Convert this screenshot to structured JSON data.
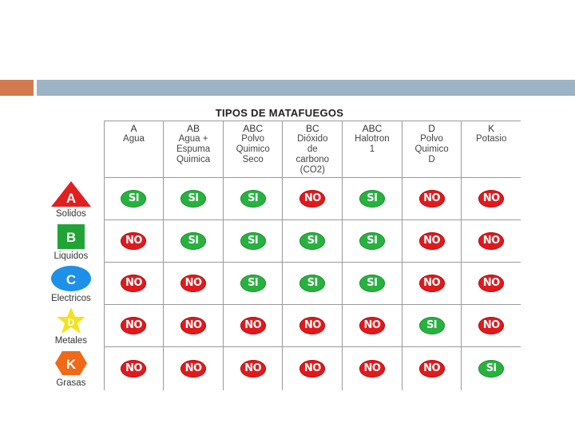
{
  "table_title": "TIPOS DE MATAFUEGOS",
  "columns": [
    {
      "code": "A",
      "desc": "Agua"
    },
    {
      "code": "AB",
      "desc": "Agua +\nEspuma\nQuimica"
    },
    {
      "code": "ABC",
      "desc": "Polvo\nQuimico\nSeco"
    },
    {
      "code": "BC",
      "desc": "Dióxido\nde\ncarbono\n(CO2)"
    },
    {
      "code": "ABC",
      "desc": "Halotron\n1"
    },
    {
      "code": "D",
      "desc": "Polvo\nQuimico\nD"
    },
    {
      "code": "K",
      "desc": "Potasio"
    }
  ],
  "rows": [
    {
      "class_letter": "A",
      "label": "Solidos",
      "shape": "triangle",
      "color": "#e02020",
      "values": [
        "SI",
        "SI",
        "SI",
        "NO",
        "SI",
        "NO",
        "NO"
      ]
    },
    {
      "class_letter": "B",
      "label": "Liquidos",
      "shape": "square",
      "color": "#22a336",
      "values": [
        "NO",
        "SI",
        "SI",
        "SI",
        "SI",
        "NO",
        "NO"
      ]
    },
    {
      "class_letter": "C",
      "label": "Electricos",
      "shape": "circle",
      "color": "#1e90e8",
      "values": [
        "NO",
        "NO",
        "SI",
        "SI",
        "SI",
        "NO",
        "NO"
      ]
    },
    {
      "class_letter": "D",
      "label": "Metales",
      "shape": "star",
      "color": "#f5e21c",
      "values": [
        "NO",
        "NO",
        "NO",
        "NO",
        "NO",
        "SI",
        "NO"
      ]
    },
    {
      "class_letter": "K",
      "label": "Grasas",
      "shape": "hexagon",
      "color": "#ee6a18",
      "values": [
        "NO",
        "NO",
        "NO",
        "NO",
        "NO",
        "NO",
        "SI"
      ]
    }
  ],
  "badge_colors": {
    "SI": "#27b23f",
    "NO": "#e2191c"
  }
}
